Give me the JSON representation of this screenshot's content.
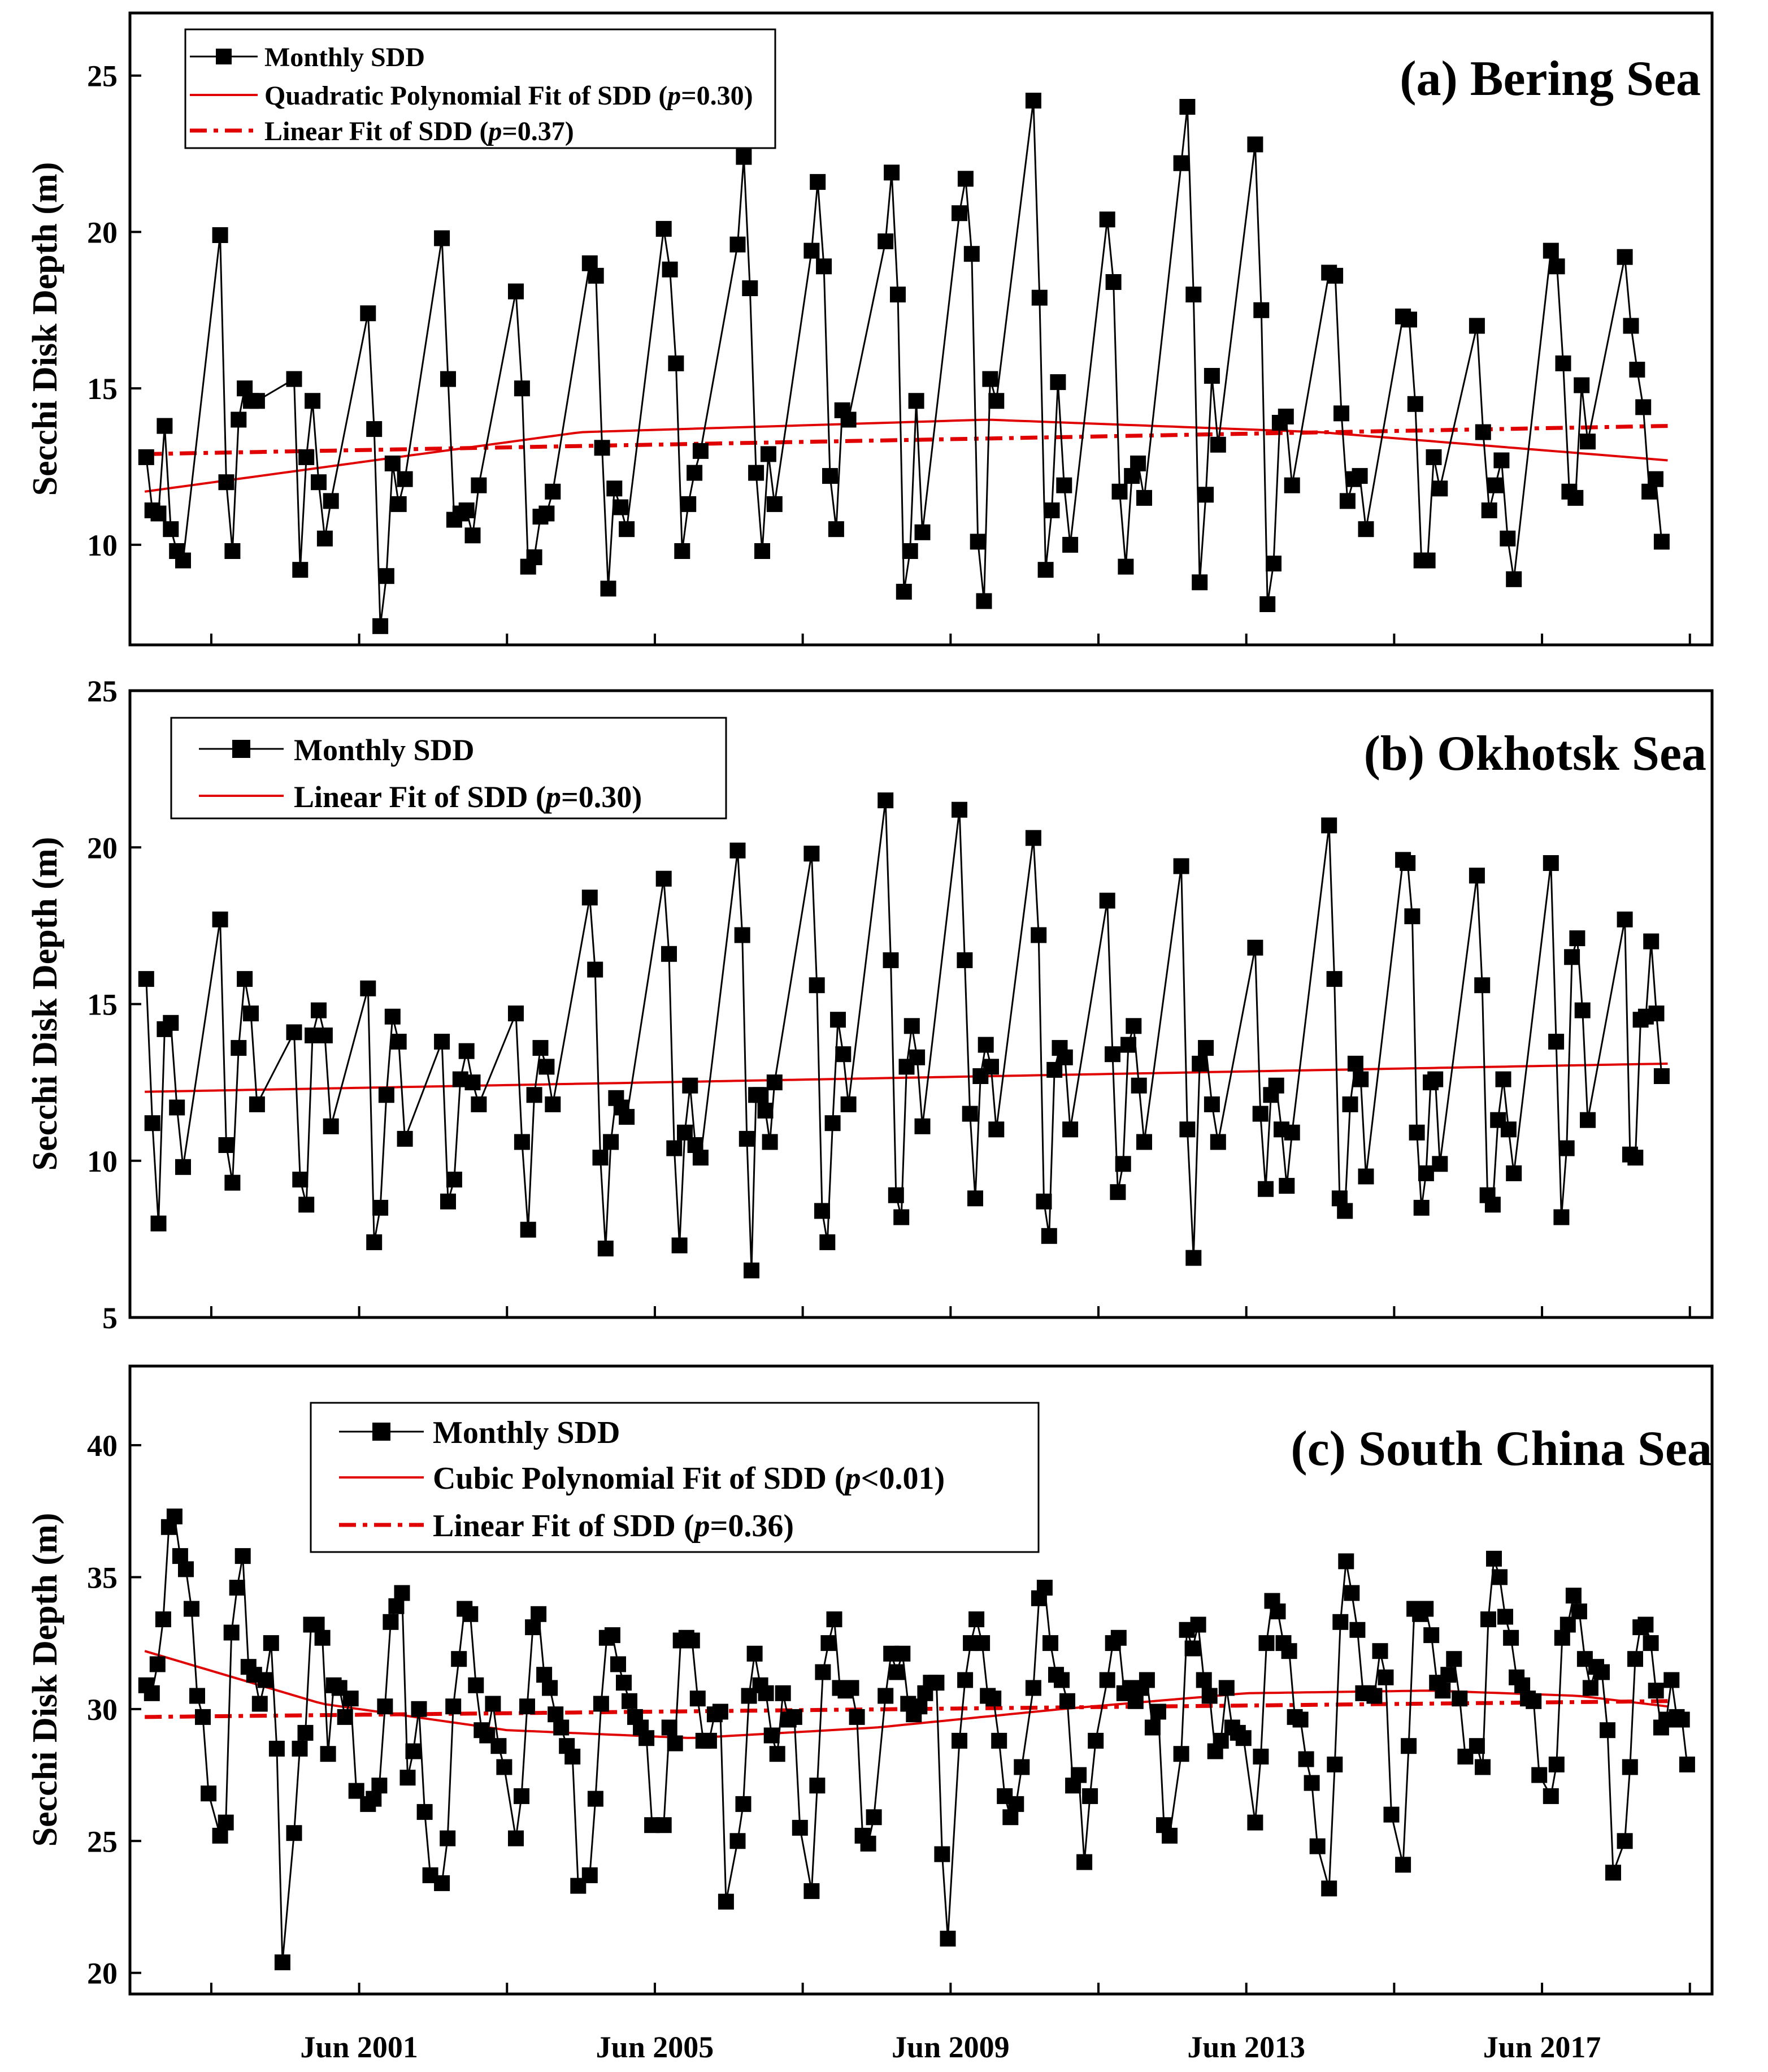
{
  "x_axis": {
    "start_year": 1997.9,
    "end_year": 2019.3,
    "major_ticks": [
      1999,
      2001,
      2003,
      2005,
      2007,
      2009,
      2011,
      2013,
      2015,
      2017,
      2019
    ],
    "tick_labels": [
      "Jun 2001",
      "Jun 2005",
      "Jun 2009",
      "Jun 2013",
      "Jun 2017"
    ]
  },
  "chart_data": [
    {
      "id": "a",
      "type": "line",
      "title": "(a) Bering Sea",
      "ylabel": "Secchi Disk Depth (m)",
      "ylim": [
        6.8,
        27
      ],
      "yticks": [
        10,
        15,
        20,
        25
      ],
      "legend": [
        "Monthly SDD",
        "Quadratic Polynomial Fit of SDD (p=0.30)",
        "Linear Fit of SDD (p=0.37)"
      ],
      "legend_parts": [
        [
          "Monthly SDD"
        ],
        [
          "Quadratic Polynomial Fit of SDD (",
          "p",
          "=0.30)"
        ],
        [
          "Linear Fit of SDD (",
          "p",
          "=0.37)"
        ]
      ],
      "fits": [
        {
          "type": "quadratic",
          "x": [
            1998.1,
            2004.0,
            2009.5,
            2014.0,
            2018.7
          ],
          "y": [
            11.7,
            13.6,
            14.0,
            13.6,
            12.7
          ]
        },
        {
          "type": "linear",
          "x": [
            1998.1,
            2018.7
          ],
          "y": [
            12.9,
            13.8
          ]
        }
      ],
      "series": [
        {
          "year": 1998,
          "values": [
            12.8,
            11.1,
            11.0,
            13.8,
            10.5,
            9.8,
            9.5
          ]
        },
        {
          "year": 1999,
          "values": [
            19.9,
            12.0,
            9.8,
            14.0,
            15.0,
            14.6,
            14.6
          ]
        },
        {
          "year": 2000,
          "values": [
            15.3,
            9.2,
            12.8,
            14.6,
            12.0,
            10.2,
            11.4
          ]
        },
        {
          "year": 2001,
          "values": [
            17.4,
            13.7,
            7.4,
            9.0,
            12.6,
            11.3,
            12.1
          ]
        },
        {
          "year": 2002,
          "values": [
            19.8,
            15.3,
            10.8,
            11.0,
            11.1,
            10.3,
            11.9
          ]
        },
        {
          "year": 2003,
          "values": [
            18.1,
            15.0,
            9.3,
            9.6,
            10.9,
            11.0,
            11.7
          ]
        },
        {
          "year": 2004,
          "values": [
            19.0,
            18.6,
            13.1,
            8.6,
            11.8,
            11.2,
            10.5
          ]
        },
        {
          "year": 2005,
          "values": [
            20.1,
            18.8,
            15.8,
            9.8,
            11.3,
            12.3,
            13.0
          ]
        },
        {
          "year": 2006,
          "values": [
            19.6,
            22.4,
            18.2,
            12.3,
            9.8,
            12.9,
            11.3
          ]
        },
        {
          "year": 2007,
          "values": [
            19.4,
            21.6,
            18.9,
            12.2,
            10.5,
            14.3,
            14.0
          ]
        },
        {
          "year": 2008,
          "values": [
            19.7,
            21.9,
            18.0,
            8.5,
            9.8,
            14.6,
            10.4
          ]
        },
        {
          "year": 2009,
          "values": [
            20.6,
            21.7,
            19.3,
            10.1,
            8.2,
            15.3,
            14.6
          ]
        },
        {
          "year": 2010,
          "values": [
            24.2,
            17.9,
            9.2,
            11.1,
            15.2,
            11.9,
            10.0
          ]
        },
        {
          "year": 2011,
          "values": [
            20.4,
            18.4,
            11.7,
            9.3,
            12.2,
            12.6,
            11.5
          ]
        },
        {
          "year": 2012,
          "values": [
            22.2,
            24.0,
            18.0,
            8.8,
            11.6,
            15.4,
            13.2
          ]
        },
        {
          "year": 2013,
          "values": [
            22.8,
            17.5,
            8.1,
            9.4,
            13.9,
            14.1,
            11.9
          ]
        },
        {
          "year": 2014,
          "values": [
            18.7,
            18.6,
            14.2,
            11.4,
            12.1,
            12.2,
            10.5
          ]
        },
        {
          "year": 2015,
          "values": [
            17.3,
            17.2,
            14.5,
            9.5,
            9.5,
            12.8,
            11.8
          ]
        },
        {
          "year": 2016,
          "values": [
            17.0,
            13.6,
            11.1,
            11.9,
            12.7,
            10.2,
            8.9
          ]
        },
        {
          "year": 2017,
          "values": [
            19.4,
            18.9,
            15.8,
            11.7,
            11.5,
            15.1,
            13.3
          ]
        },
        {
          "year": 2018,
          "values": [
            19.2,
            17.0,
            15.6,
            14.4,
            11.7,
            12.1,
            10.1
          ]
        }
      ]
    },
    {
      "id": "b",
      "type": "line",
      "title": "(b) Okhotsk Sea",
      "ylabel": "Secchi Disk Depth (m)",
      "ylim": [
        5,
        25
      ],
      "yticks": [
        5,
        10,
        15,
        20,
        25
      ],
      "legend": [
        "Monthly SDD",
        "Linear Fit of SDD (p=0.30)"
      ],
      "legend_parts": [
        [
          "Monthly SDD"
        ],
        [
          "Linear Fit of SDD (",
          "p",
          "=0.30)"
        ]
      ],
      "fits": [
        {
          "type": "linear",
          "x": [
            1998.1,
            2018.7
          ],
          "y": [
            12.2,
            13.1
          ]
        }
      ],
      "series": [
        {
          "year": 1998,
          "values": [
            15.8,
            11.2,
            8.0,
            14.2,
            14.4,
            11.7,
            9.8
          ]
        },
        {
          "year": 1999,
          "values": [
            17.7,
            10.5,
            9.3,
            13.6,
            15.8,
            14.7,
            11.8
          ]
        },
        {
          "year": 2000,
          "values": [
            14.1,
            9.4,
            8.6,
            14.0,
            14.8,
            14.0,
            11.1
          ]
        },
        {
          "year": 2001,
          "values": [
            15.5,
            7.4,
            8.5,
            12.1,
            14.6,
            13.8,
            10.7
          ]
        },
        {
          "year": 2002,
          "values": [
            13.8,
            8.7,
            9.4,
            12.6,
            13.5,
            12.5,
            11.8
          ]
        },
        {
          "year": 2003,
          "values": [
            14.7,
            10.6,
            7.8,
            12.1,
            13.6,
            13.0,
            11.8
          ]
        },
        {
          "year": 2004,
          "values": [
            18.4,
            16.1,
            10.1,
            7.2,
            10.6,
            12.0,
            11.7,
            11.4
          ]
        },
        {
          "year": 2005,
          "values": [
            19.0,
            16.6,
            10.4,
            7.3,
            10.9,
            12.4,
            10.5,
            10.1
          ]
        },
        {
          "year": 2006,
          "values": [
            19.9,
            17.2,
            10.7,
            6.5,
            12.1,
            12.1,
            11.6,
            10.6,
            12.5
          ]
        },
        {
          "year": 2007,
          "values": [
            19.8,
            15.6,
            8.4,
            7.4,
            11.2,
            14.5,
            13.4,
            11.8
          ]
        },
        {
          "year": 2008,
          "values": [
            21.5,
            16.4,
            8.9,
            8.2,
            13.0,
            14.3,
            13.3,
            11.1
          ]
        },
        {
          "year": 2009,
          "values": [
            21.2,
            16.4,
            11.5,
            8.8,
            12.7,
            13.7,
            13.0,
            11.0
          ]
        },
        {
          "year": 2010,
          "values": [
            20.3,
            17.2,
            8.7,
            7.6,
            12.9,
            13.6,
            13.3,
            11.0
          ]
        },
        {
          "year": 2011,
          "values": [
            18.3,
            13.4,
            9.0,
            9.9,
            13.7,
            14.3,
            12.4,
            10.6
          ]
        },
        {
          "year": 2012,
          "values": [
            19.4,
            11.0,
            6.9,
            13.1,
            13.6,
            11.8,
            10.6
          ]
        },
        {
          "year": 2013,
          "values": [
            16.8,
            11.5,
            9.1,
            12.1,
            12.4,
            11.0,
            9.2,
            10.9
          ]
        },
        {
          "year": 2014,
          "values": [
            20.7,
            15.8,
            8.8,
            8.4,
            11.8,
            13.1,
            12.6,
            9.5
          ]
        },
        {
          "year": 2015,
          "values": [
            19.6,
            19.5,
            17.8,
            10.9,
            8.5,
            9.6,
            12.5,
            12.6,
            9.9
          ]
        },
        {
          "year": 2016,
          "values": [
            19.1,
            15.6,
            8.9,
            8.6,
            11.3,
            12.6,
            11.0,
            9.6
          ]
        },
        {
          "year": 2017,
          "values": [
            19.5,
            13.8,
            8.2,
            10.4,
            16.5,
            17.1,
            14.8,
            11.3
          ]
        },
        {
          "year": 2018,
          "values": [
            17.7,
            10.2,
            10.1,
            14.5,
            14.6,
            17.0,
            14.7,
            12.7
          ]
        }
      ]
    },
    {
      "id": "c",
      "type": "line",
      "title": "(c) South China Sea",
      "ylabel": "Secchi Disk Depth (m)",
      "ylim": [
        19.2,
        43
      ],
      "yticks": [
        20,
        25,
        30,
        35,
        40
      ],
      "legend": [
        "Monthly SDD",
        "Cubic Polynomial Fit of SDD (p<0.01)",
        "Linear Fit of SDD (p=0.36)"
      ],
      "legend_parts": [
        [
          "Monthly SDD"
        ],
        [
          "Cubic Polynomial Fit of SDD (",
          "p",
          "<0.01)"
        ],
        [
          "Linear Fit of SDD (",
          "p",
          "=0.36)"
        ]
      ],
      "fits": [
        {
          "type": "cubic",
          "x": [
            1998.1,
            2000.5,
            2003.0,
            2005.5,
            2008.0,
            2010.5,
            2013.0,
            2015.5,
            2017.5,
            2018.7
          ],
          "y": [
            32.2,
            30.2,
            29.2,
            28.9,
            29.3,
            30.0,
            30.6,
            30.7,
            30.5,
            30.1
          ]
        },
        {
          "type": "linear",
          "x": [
            1998.1,
            2018.7
          ],
          "y": [
            29.7,
            30.3
          ]
        }
      ],
      "series": [
        {
          "year": 1998,
          "values": [
            30.9,
            30.6,
            31.7,
            33.4,
            36.9,
            37.3,
            35.8,
            35.3,
            33.8,
            30.5,
            29.7,
            26.8
          ]
        },
        {
          "year": 1999,
          "values": [
            25.2,
            25.7,
            32.9,
            34.6,
            35.8,
            31.6,
            31.3,
            30.2,
            31.1,
            32.5,
            28.5,
            20.4
          ]
        },
        {
          "year": 2000,
          "values": [
            25.3,
            28.5,
            29.1,
            33.2,
            33.2,
            32.7,
            28.3,
            30.9,
            30.8,
            29.7,
            30.4,
            26.9
          ]
        },
        {
          "year": 2001,
          "values": [
            26.4,
            26.6,
            27.1,
            30.1,
            33.3,
            33.9,
            34.4,
            27.4,
            28.4,
            30.0,
            26.1,
            23.7
          ]
        },
        {
          "year": 2002,
          "values": [
            23.4,
            25.1,
            30.1,
            31.9,
            33.8,
            33.6,
            30.9,
            29.2,
            29.0,
            30.2,
            28.6,
            27.8
          ]
        },
        {
          "year": 2003,
          "values": [
            25.1,
            26.7,
            30.1,
            33.1,
            33.6,
            31.3,
            30.8,
            29.8,
            29.3,
            28.6,
            28.2,
            23.3
          ]
        },
        {
          "year": 2004,
          "values": [
            23.7,
            26.6,
            30.2,
            32.7,
            32.8,
            31.7,
            31.0,
            30.3,
            29.7,
            29.3,
            28.9,
            25.6
          ]
        },
        {
          "year": 2005,
          "values": [
            25.6,
            29.3,
            28.7,
            32.6,
            32.7,
            32.6,
            30.4,
            28.8,
            28.8,
            29.8,
            29.9,
            22.7
          ]
        },
        {
          "year": 2006,
          "values": [
            25.0,
            26.4,
            30.5,
            32.1,
            30.9,
            30.6,
            29.0,
            28.3,
            30.6,
            29.6,
            29.7,
            25.5
          ]
        },
        {
          "year": 2007,
          "values": [
            23.1,
            27.1,
            31.4,
            32.5,
            33.4,
            30.8,
            30.7,
            30.8,
            29.7,
            25.2,
            24.9,
            25.9
          ]
        },
        {
          "year": 2008,
          "values": [
            30.5,
            32.1,
            31.4,
            32.1,
            30.2,
            29.8,
            30.1,
            30.6,
            31.0,
            31.0,
            24.5,
            21.3
          ]
        },
        {
          "year": 2009,
          "values": [
            28.8,
            31.1,
            32.5,
            33.4,
            32.5,
            30.5,
            30.4,
            28.8,
            26.7,
            25.9,
            26.4,
            27.8
          ]
        },
        {
          "year": 2010,
          "values": [
            30.8,
            34.2,
            34.6,
            32.5,
            31.3,
            31.1,
            30.3,
            27.1,
            27.5,
            24.2,
            26.7,
            28.8
          ]
        },
        {
          "year": 2011,
          "values": [
            31.1,
            32.5,
            32.7,
            30.6,
            30.8,
            30.3,
            30.8,
            31.1,
            29.3,
            29.9,
            25.6,
            25.2
          ]
        },
        {
          "year": 2012,
          "values": [
            28.3,
            33.0,
            32.3,
            33.2,
            31.1,
            30.5,
            28.4,
            28.8,
            30.8,
            29.3,
            29.1,
            28.9
          ]
        },
        {
          "year": 2013,
          "values": [
            25.7,
            28.2,
            32.5,
            34.1,
            33.7,
            32.5,
            32.2,
            29.7,
            29.6,
            28.1,
            27.2,
            24.8
          ]
        },
        {
          "year": 2014,
          "values": [
            23.2,
            27.9,
            33.3,
            35.6,
            34.4,
            33.0,
            30.6,
            30.6,
            30.5,
            32.2,
            31.2,
            26.0
          ]
        },
        {
          "year": 2015,
          "values": [
            24.1,
            28.6,
            33.8,
            33.6,
            33.8,
            32.8,
            31.0,
            30.7,
            31.3,
            31.9,
            30.4,
            28.2
          ]
        },
        {
          "year": 2016,
          "values": [
            28.6,
            27.8,
            33.4,
            35.7,
            35.0,
            33.5,
            32.7,
            31.2,
            30.9,
            30.4,
            30.3,
            27.5
          ]
        },
        {
          "year": 2017,
          "values": [
            26.7,
            27.9,
            32.7,
            33.2,
            34.3,
            33.7,
            31.9,
            30.8,
            31.6,
            31.4,
            29.2,
            23.8
          ]
        },
        {
          "year": 2018,
          "values": [
            25.0,
            27.8,
            31.9,
            33.1,
            33.2,
            32.5,
            30.7,
            29.3,
            29.6,
            31.1,
            29.7,
            29.6,
            27.9
          ]
        }
      ]
    }
  ]
}
